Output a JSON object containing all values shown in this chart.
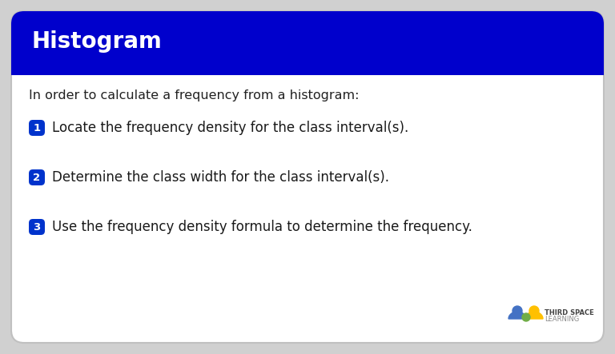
{
  "title": "Histogram",
  "title_bg_color": "#0000CC",
  "title_text_color": "#FFFFFF",
  "body_bg_color": "#FFFFFF",
  "outer_bg_color": "#D0D0D0",
  "intro_text": "In order to calculate a frequency from a histogram:",
  "steps": [
    {
      "number": "1",
      "text": "Locate the frequency density for the class interval(s)."
    },
    {
      "number": "2",
      "text": "Determine the class width for the class interval(s)."
    },
    {
      "number": "3",
      "text": "Use the frequency density formula to determine the frequency."
    }
  ],
  "step_badge_color": "#0033CC",
  "step_badge_text_color": "#FFFFFF",
  "intro_fontsize": 11.5,
  "step_fontsize": 12,
  "title_fontsize": 20,
  "logo_text1": "THIRD SPACE",
  "logo_text2": "LEARNING"
}
